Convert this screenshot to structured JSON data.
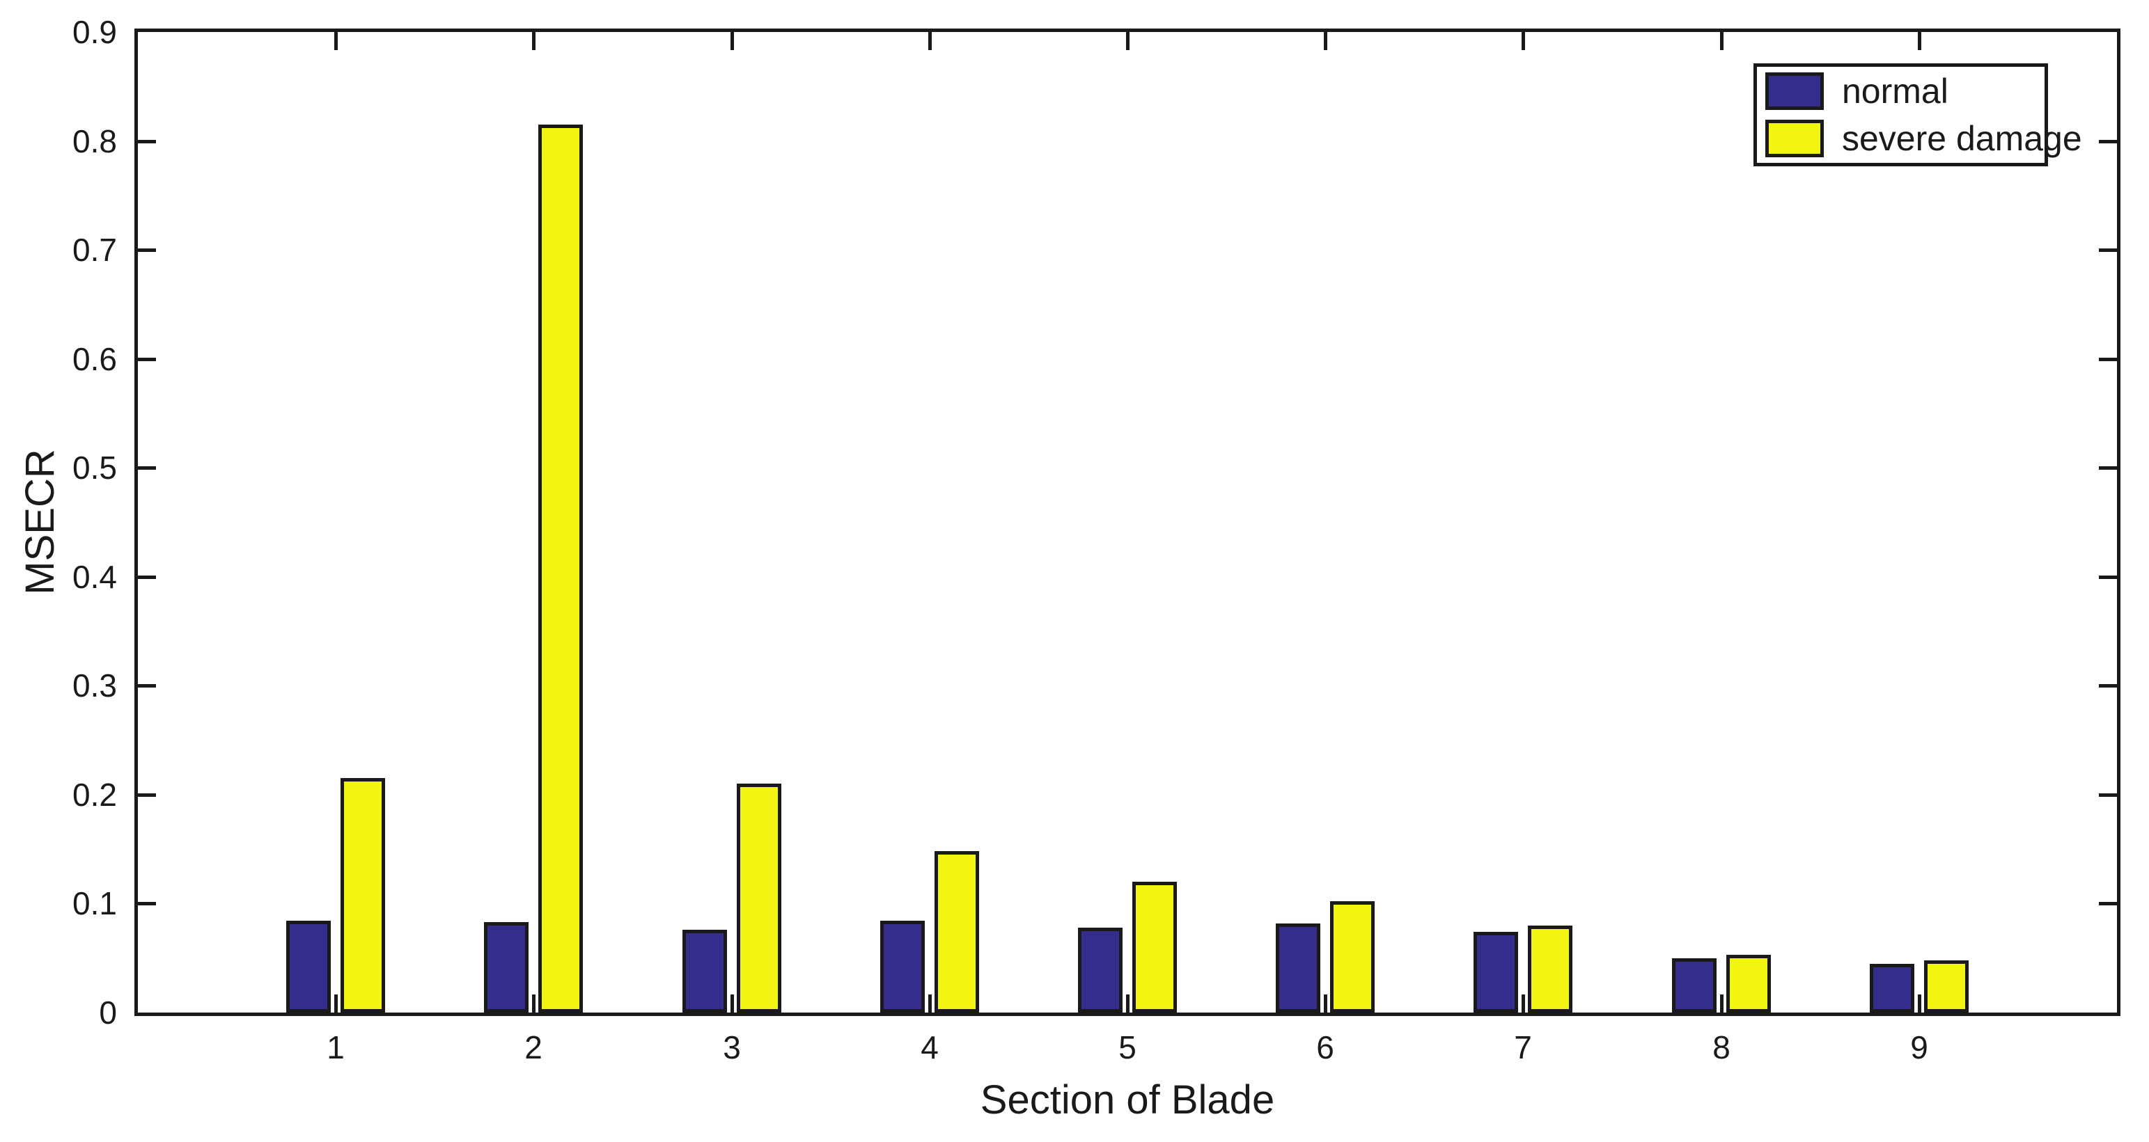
{
  "chart_data": {
    "type": "bar",
    "title": "",
    "xlabel": "Section of Blade",
    "ylabel": "MSECR",
    "categories": [
      "1",
      "2",
      "3",
      "4",
      "5",
      "6",
      "7",
      "8",
      "9"
    ],
    "series": [
      {
        "name": "normal",
        "color": "#352D8B",
        "values": [
          0.084,
          0.083,
          0.076,
          0.084,
          0.078,
          0.082,
          0.074,
          0.05,
          0.045
        ]
      },
      {
        "name": "severe damage",
        "color": "#F2F510",
        "values": [
          0.215,
          0.815,
          0.21,
          0.148,
          0.12,
          0.102,
          0.08,
          0.053,
          0.048
        ]
      }
    ],
    "ylim": [
      0,
      0.9
    ],
    "yticks": [
      "0",
      "0.1",
      "0.2",
      "0.3",
      "0.4",
      "0.5",
      "0.6",
      "0.7",
      "0.8",
      "0.9"
    ],
    "grid": false,
    "legend": {
      "position": "top-right",
      "entries": [
        "normal",
        "severe damage"
      ]
    },
    "axis_color": "#1A1A1A",
    "background_color": "#FFFFFF"
  }
}
